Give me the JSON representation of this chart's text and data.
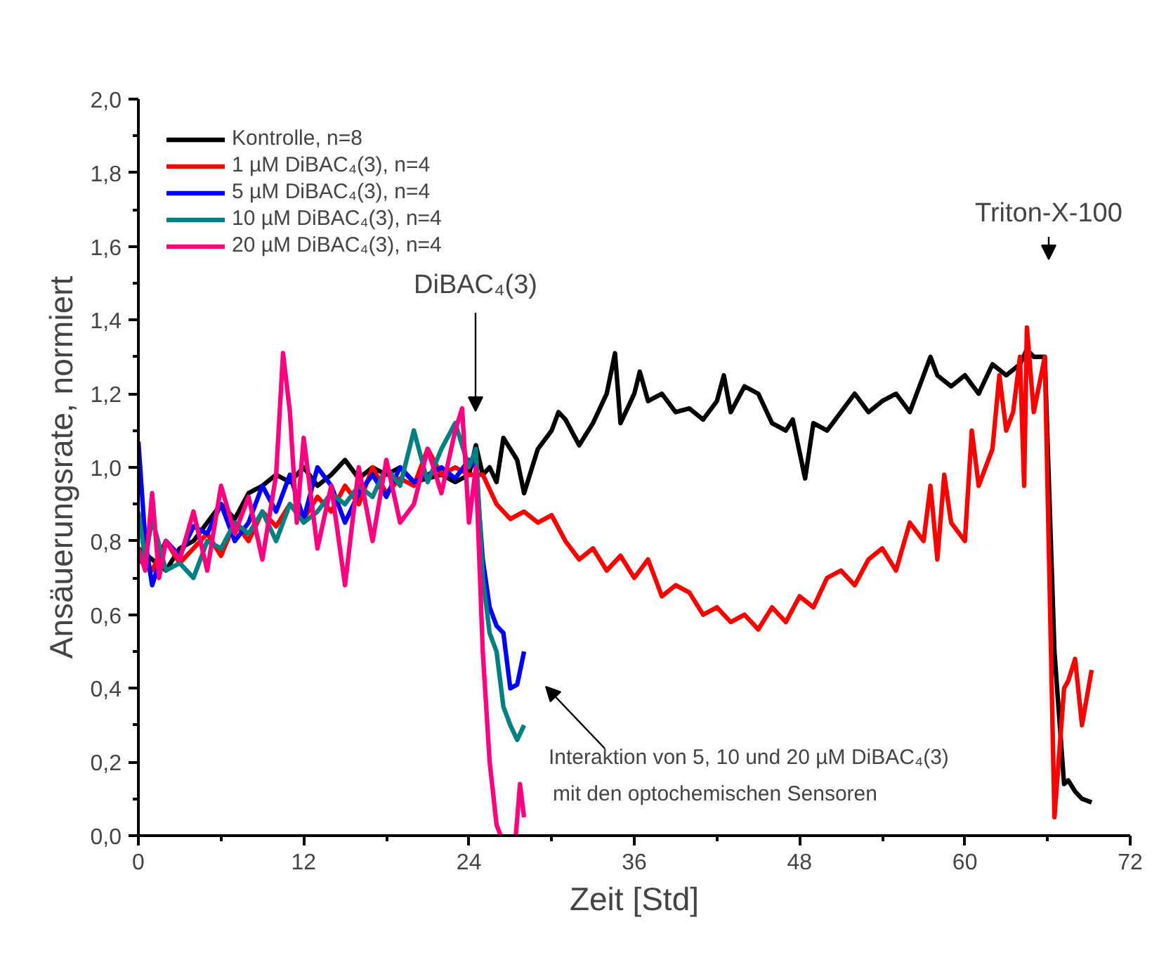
{
  "chart_data": {
    "type": "line",
    "xlabel": "Zeit [Std]",
    "ylabel": "Ansäuerungsrate, normiert",
    "xlim": [
      0,
      72
    ],
    "ylim": [
      0,
      2.0
    ],
    "xticks": [
      0,
      12,
      24,
      36,
      48,
      60,
      72
    ],
    "yticks": [
      {
        "value": 0,
        "label": "0,0"
      },
      {
        "value": 0.2,
        "label": "0,2"
      },
      {
        "value": 0.4,
        "label": "0,4"
      },
      {
        "value": 0.6,
        "label": "0,6"
      },
      {
        "value": 0.8,
        "label": "0,8"
      },
      {
        "value": 1.0,
        "label": "1,0"
      },
      {
        "value": 1.2,
        "label": "1,2"
      },
      {
        "value": 1.4,
        "label": "1,4"
      },
      {
        "value": 1.6,
        "label": "1,6"
      },
      {
        "value": 1.8,
        "label": "1,8"
      },
      {
        "value": 2.0,
        "label": "2,0"
      }
    ],
    "grid": false,
    "legend": "top left",
    "marker": "none",
    "line_style": "solid",
    "annotations": [
      "DiBAC₄(3)",
      "Triton-X-100",
      "Interaktion von 5, 10 und 20 µM DiBAC₄(3)\nmit den optochemischen Sensoren"
    ],
    "series": [
      {
        "name": "Kontrolle, n=8",
        "color": "#000000",
        "x": [
          0,
          1,
          2,
          3,
          4,
          5,
          6,
          7,
          8,
          9,
          10,
          11,
          12,
          13,
          14,
          15,
          16,
          17,
          18,
          19,
          20,
          21,
          22,
          23,
          24,
          24.5,
          25,
          25.5,
          26,
          26.5,
          27,
          27.5,
          28,
          29,
          30,
          30.5,
          31,
          32,
          33,
          34,
          34.6,
          35,
          36,
          36.4,
          37,
          38,
          39,
          40,
          41,
          42,
          42.5,
          43,
          44,
          45,
          46,
          47,
          47.5,
          48.4,
          49,
          50,
          51,
          52,
          53,
          54,
          55,
          56,
          57,
          57.5,
          58,
          59,
          60,
          61,
          62,
          63,
          64,
          64.5,
          65,
          65.8,
          66.5,
          67.2,
          67.5,
          68,
          68.5,
          69.2
        ],
        "values": [
          0.78,
          0.75,
          0.72,
          0.78,
          0.8,
          0.85,
          0.9,
          0.86,
          0.93,
          0.95,
          0.98,
          0.96,
          1.0,
          0.95,
          0.98,
          1.02,
          0.97,
          1.0,
          0.98,
          1.0,
          0.96,
          0.97,
          0.98,
          0.96,
          0.98,
          1.06,
          0.98,
          1.0,
          0.96,
          1.08,
          1.05,
          1.02,
          0.93,
          1.05,
          1.1,
          1.15,
          1.13,
          1.06,
          1.12,
          1.2,
          1.31,
          1.12,
          1.2,
          1.26,
          1.18,
          1.2,
          1.15,
          1.16,
          1.13,
          1.18,
          1.25,
          1.15,
          1.22,
          1.2,
          1.12,
          1.1,
          1.13,
          0.97,
          1.12,
          1.1,
          1.15,
          1.2,
          1.15,
          1.18,
          1.2,
          1.15,
          1.25,
          1.3,
          1.25,
          1.22,
          1.25,
          1.2,
          1.28,
          1.25,
          1.28,
          1.32,
          1.3,
          1.3,
          0.5,
          0.14,
          0.15,
          0.12,
          0.1,
          0.09
        ]
      },
      {
        "name": "1 µM DiBAC₄(3), n=4",
        "color": "#ff0000",
        "x": [
          0,
          1,
          2,
          3,
          4,
          5,
          6,
          7,
          8,
          9,
          10,
          11,
          12,
          13,
          14,
          15,
          16,
          17,
          18,
          19,
          20,
          21,
          22,
          23,
          24,
          25,
          26,
          27,
          28,
          29,
          30,
          31,
          32,
          33,
          34,
          35,
          36,
          37,
          38,
          39,
          40,
          41,
          42,
          43,
          44,
          45,
          46,
          47,
          48,
          49,
          50,
          51,
          52,
          53,
          54,
          55,
          56,
          57,
          57.5,
          58,
          58.5,
          59,
          60,
          60.5,
          61,
          62,
          62.5,
          63,
          63.5,
          64,
          64.3,
          64.5,
          65,
          65.8,
          66.5,
          67.2,
          67.5,
          68,
          68.5,
          69.2
        ],
        "values": [
          0.75,
          0.72,
          0.8,
          0.74,
          0.78,
          0.82,
          0.76,
          0.85,
          0.8,
          0.88,
          0.84,
          0.9,
          0.86,
          0.92,
          0.88,
          0.95,
          0.9,
          1.0,
          0.93,
          0.97,
          0.95,
          1.05,
          0.98,
          1.0,
          0.98,
          0.98,
          0.9,
          0.86,
          0.88,
          0.85,
          0.87,
          0.8,
          0.75,
          0.78,
          0.72,
          0.76,
          0.7,
          0.75,
          0.65,
          0.68,
          0.66,
          0.6,
          0.62,
          0.58,
          0.6,
          0.56,
          0.62,
          0.58,
          0.65,
          0.62,
          0.7,
          0.72,
          0.68,
          0.75,
          0.78,
          0.72,
          0.85,
          0.8,
          0.95,
          0.75,
          0.98,
          0.85,
          0.8,
          1.1,
          0.95,
          1.05,
          1.25,
          1.1,
          1.15,
          1.3,
          0.95,
          1.38,
          1.15,
          1.3,
          0.05,
          0.4,
          0.42,
          0.48,
          0.3,
          0.45
        ]
      },
      {
        "name": "5 µM DiBAC₄(3), n=4",
        "color": "#0000ff",
        "x": [
          0,
          0.5,
          1,
          2,
          3,
          4,
          5,
          6,
          7,
          8,
          9,
          10,
          11,
          12,
          13,
          14,
          15,
          16,
          17,
          18,
          19,
          20,
          21,
          22,
          23,
          24,
          24.5,
          25,
          25.5,
          26,
          26.5,
          27,
          27.5,
          28
        ],
        "values": [
          1.07,
          0.8,
          0.68,
          0.8,
          0.76,
          0.84,
          0.82,
          0.9,
          0.8,
          0.85,
          0.95,
          0.88,
          0.98,
          0.86,
          1.0,
          0.95,
          0.85,
          0.93,
          0.98,
          0.92,
          1.0,
          0.96,
          0.98,
          1.0,
          0.97,
          1.02,
          1.0,
          0.75,
          0.62,
          0.57,
          0.55,
          0.4,
          0.41,
          0.5
        ]
      },
      {
        "name": "10 µM DiBAC₄(3), n=4",
        "color": "#008080",
        "x": [
          0,
          0.5,
          1,
          2,
          3,
          4,
          5,
          6,
          7,
          8,
          9,
          10,
          11,
          12,
          13,
          14,
          15,
          16,
          17,
          18,
          19,
          20,
          21,
          22,
          23,
          24,
          24.5,
          25,
          25.5,
          26,
          26.5,
          27,
          27.5,
          28
        ],
        "values": [
          0.88,
          0.75,
          0.86,
          0.72,
          0.74,
          0.7,
          0.8,
          0.78,
          0.85,
          0.82,
          0.88,
          0.8,
          0.9,
          0.85,
          0.88,
          0.93,
          0.9,
          0.95,
          0.92,
          1.0,
          0.95,
          1.1,
          0.96,
          1.05,
          1.12,
          1.0,
          1.05,
          0.7,
          0.55,
          0.5,
          0.35,
          0.3,
          0.26,
          0.3
        ]
      },
      {
        "name": "20 µM DiBAC₄(3), n=4",
        "color": "#ff0080",
        "x": [
          0,
          0.5,
          1,
          1.5,
          2,
          3,
          4,
          5,
          6,
          7,
          8,
          9,
          10,
          10.5,
          11,
          11.5,
          12,
          13,
          14,
          15,
          16,
          17,
          18,
          19,
          20,
          21,
          22,
          23,
          23.5,
          24,
          24.5,
          25,
          25.5,
          26,
          26.3,
          26.8,
          27.4,
          27.7,
          28
        ],
        "values": [
          0.78,
          0.72,
          0.93,
          0.7,
          0.8,
          0.75,
          0.88,
          0.72,
          0.95,
          0.82,
          0.92,
          0.75,
          0.98,
          1.31,
          1.15,
          0.85,
          1.08,
          0.78,
          0.95,
          0.68,
          1.0,
          0.8,
          1.02,
          0.85,
          0.9,
          1.05,
          0.93,
          1.1,
          1.16,
          0.85,
          1.0,
          0.5,
          0.2,
          0.03,
          0.0,
          null,
          0.0,
          0.14,
          0.05
        ]
      }
    ]
  }
}
